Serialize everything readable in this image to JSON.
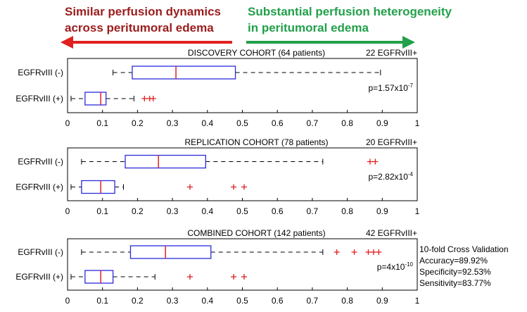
{
  "header": {
    "left_line1": "Similar perfusion dynamics",
    "left_line2": "across peritumoral edema",
    "right_line1": "Substantial perfusion heterogeneity",
    "right_line2": "in peritumoral edema",
    "left_color": "#9b1c1c",
    "right_color": "#22a04a",
    "left_arrow_color": "#e02020",
    "right_arrow_color": "#22a04a"
  },
  "cross_validation": {
    "title": "10-fold Cross Validation",
    "accuracy": "Accuracy=89.92%",
    "specificity": "Specificity=92.53%",
    "sensitivity": "Sensitivity=83.77%"
  },
  "chart_data": [
    {
      "type": "box",
      "title": "DISCOVERY COHORT (64 patients)",
      "annotation": "22 EGFRvIII+",
      "pvalue_base": "p=1.57x10",
      "pvalue_exp": "-7",
      "xlim": [
        0,
        1
      ],
      "xticks": [
        "0",
        "0.1",
        "0.2",
        "0.3",
        "0.4",
        "0.5",
        "0.6",
        "0.7",
        "0.8",
        "0.9",
        "1"
      ],
      "categories": [
        "EGFRvIII (-)",
        "EGFRvIII (+)"
      ],
      "boxes": [
        {
          "label": "EGFRvIII (-)",
          "whisker_low": 0.13,
          "q1": 0.185,
          "median": 0.31,
          "q3": 0.48,
          "whisker_high": 0.895,
          "outliers": []
        },
        {
          "label": "EGFRvIII (+)",
          "whisker_low": 0.01,
          "q1": 0.05,
          "median": 0.095,
          "q3": 0.11,
          "whisker_high": 0.19,
          "outliers": [
            0.22,
            0.235,
            0.245
          ]
        }
      ]
    },
    {
      "type": "box",
      "title": "REPLICATION COHORT (78 patients)",
      "annotation": "20 EGFRvIII+",
      "pvalue_base": "p=2.82x10",
      "pvalue_exp": "-4",
      "xlim": [
        0,
        1
      ],
      "xticks": [
        "0",
        "0.1",
        "0.2",
        "0.3",
        "0.4",
        "0.5",
        "0.6",
        "0.7",
        "0.8",
        "0.9",
        "1"
      ],
      "categories": [
        "EGFRvIII (-)",
        "EGFRvIII (+)"
      ],
      "boxes": [
        {
          "label": "EGFRvIII (-)",
          "whisker_low": 0.04,
          "q1": 0.165,
          "median": 0.26,
          "q3": 0.395,
          "whisker_high": 0.73,
          "outliers": [
            0.865,
            0.88
          ]
        },
        {
          "label": "EGFRvIII (+)",
          "whisker_low": 0.01,
          "q1": 0.04,
          "median": 0.095,
          "q3": 0.135,
          "whisker_high": 0.16,
          "outliers": [
            0.35,
            0.475,
            0.505
          ]
        }
      ]
    },
    {
      "type": "box",
      "title": "COMBINED COHORT (142 patients)",
      "annotation": "42 EGFRvIII+",
      "pvalue_base": "p=4x10",
      "pvalue_exp": "-10",
      "xlim": [
        0,
        1
      ],
      "xticks": [
        "0",
        "0.1",
        "0.2",
        "0.3",
        "0.4",
        "0.5",
        "0.6",
        "0.7",
        "0.8",
        "0.9",
        "1"
      ],
      "categories": [
        "EGFRvIII (-)",
        "EGFRvIII (+)"
      ],
      "boxes": [
        {
          "label": "EGFRvIII (-)",
          "whisker_low": 0.04,
          "q1": 0.18,
          "median": 0.28,
          "q3": 0.41,
          "whisker_high": 0.73,
          "outliers": [
            0.77,
            0.82,
            0.86,
            0.875,
            0.89
          ]
        },
        {
          "label": "EGFRvIII (+)",
          "whisker_low": 0.01,
          "q1": 0.05,
          "median": 0.095,
          "q3": 0.13,
          "whisker_high": 0.25,
          "outliers": [
            0.35,
            0.475,
            0.505
          ]
        }
      ]
    }
  ]
}
